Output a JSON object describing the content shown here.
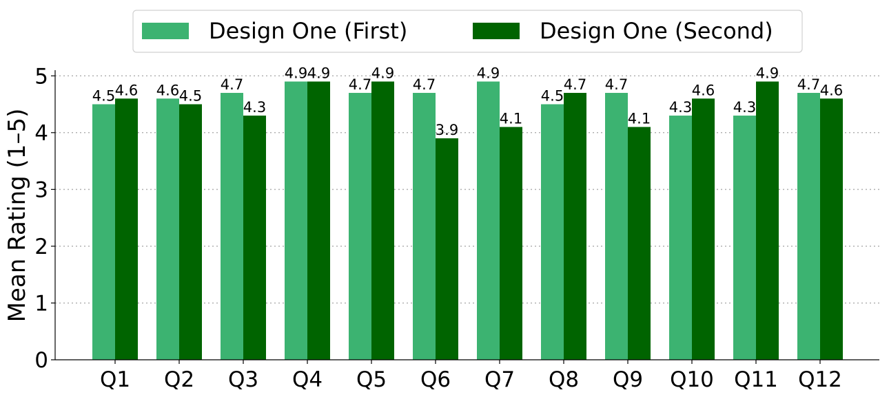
{
  "chart_data": {
    "type": "bar",
    "categories": [
      "Q1",
      "Q2",
      "Q3",
      "Q4",
      "Q5",
      "Q6",
      "Q7",
      "Q8",
      "Q9",
      "Q10",
      "Q11",
      "Q12"
    ],
    "series": [
      {
        "name": "Design One (First)",
        "color": "#3cb371",
        "values": [
          4.5,
          4.6,
          4.7,
          4.9,
          4.7,
          4.7,
          4.9,
          4.5,
          4.7,
          4.3,
          4.3,
          4.7
        ],
        "labels": [
          "4.5",
          "4.6",
          "4.7",
          "4.9",
          "4.7",
          "4.7",
          "4.9",
          "4.5",
          "4.7",
          "4.3",
          "4.3",
          "4.7"
        ]
      },
      {
        "name": "Design One (Second)",
        "color": "#006400",
        "values": [
          4.6,
          4.5,
          4.3,
          4.9,
          4.9,
          3.9,
          4.1,
          4.7,
          4.1,
          4.6,
          4.9,
          4.6
        ],
        "labels": [
          "4.6",
          "4.5",
          "4.3",
          "4.9",
          "4.9",
          "3.9",
          "4.1",
          "4.7",
          "4.1",
          "4.6",
          "4.9",
          "4.6"
        ]
      }
    ],
    "title": "",
    "xlabel": "",
    "ylabel": "Mean Rating (1–5)",
    "ylim": [
      0,
      5.1
    ],
    "yticks": [
      0,
      1,
      2,
      3,
      4,
      5
    ],
    "ytick_labels": [
      "0",
      "1",
      "2",
      "3",
      "4",
      "5"
    ],
    "grid": "horizontal dotted",
    "legend": "top-center, outside plot"
  }
}
